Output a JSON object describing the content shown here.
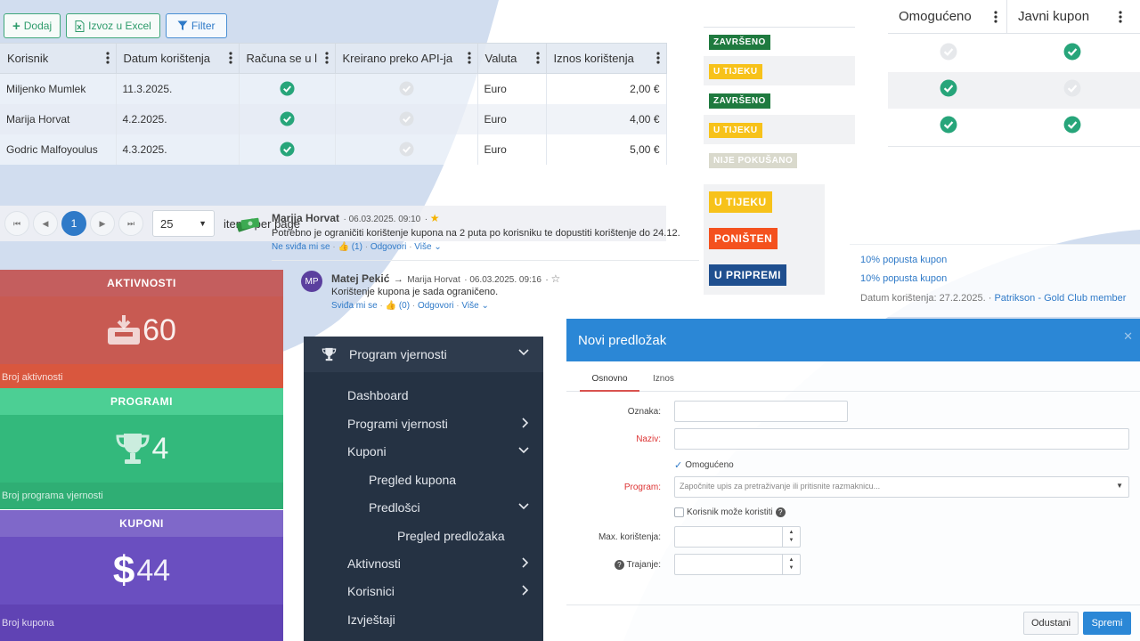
{
  "toolbar": {
    "add_label": "Dodaj",
    "excel_label": "Izvoz u Excel",
    "filter_label": "Filter"
  },
  "grid": {
    "columns": [
      "Korisnik",
      "Datum korištenja",
      "Računa se u l",
      "Kreirano preko API-ja",
      "Valuta",
      "Iznos korištenja"
    ],
    "rows": [
      {
        "user": "Miljenko Mumlek",
        "date": "11.3.2025.",
        "counted": true,
        "api": false,
        "currency": "Euro",
        "amount": "2,00 €"
      },
      {
        "user": "Marija Horvat",
        "date": "4.2.2025.",
        "counted": true,
        "api": false,
        "currency": "Euro",
        "amount": "4,00 €"
      },
      {
        "user": "Godric Malfoyoulus",
        "date": "4.3.2025.",
        "counted": true,
        "api": false,
        "currency": "Euro",
        "amount": "5,00 €"
      }
    ],
    "pager": {
      "current_page": "1",
      "page_size": "25",
      "items_per_page_label": "items per page"
    }
  },
  "statuses": {
    "small": [
      {
        "label": "ZAVRŠENO",
        "bg": "#1f7a3f",
        "fg": "#ffffff"
      },
      {
        "label": "U TIJEKU",
        "bg": "#f7c21a",
        "fg": "#ffffff"
      },
      {
        "label": "ZAVRŠENO",
        "bg": "#1f7a3f",
        "fg": "#ffffff"
      },
      {
        "label": "U TIJEKU",
        "bg": "#f7c21a",
        "fg": "#ffffff"
      },
      {
        "label": "NIJE POKUŠANO",
        "bg": "#d9d9cc",
        "fg": "#ffffff"
      }
    ],
    "large": [
      {
        "label": "U TIJEKU",
        "bg": "#f7c21a",
        "fg": "#ffffff"
      },
      {
        "label": "PONIŠTEN",
        "bg": "#f4511e",
        "fg": "#ffffff"
      },
      {
        "label": "U PRIPREMI",
        "bg": "#1f4f8f",
        "fg": "#ffffff"
      }
    ]
  },
  "right_table": {
    "col_enabled": "Omogućeno",
    "col_public": "Javni kupon",
    "rows": [
      {
        "enabled": false,
        "public": true
      },
      {
        "enabled": true,
        "public": false
      },
      {
        "enabled": true,
        "public": true
      }
    ]
  },
  "comments": [
    {
      "author": "Marija Horvat",
      "date": "06.03.2025. 09:10",
      "starred": true,
      "text": "Potrebno je ograničiti korištenje kupona na 2 puta po korisniku te dopustiti korištenje do 24.12.",
      "dislike": "Ne sviđa mi se",
      "likes": "(1)",
      "reply": "Odgovori",
      "more": "Više"
    },
    {
      "author": "Matej Pekić",
      "initials": "MP",
      "reply_to": "Marija Horvat",
      "date": "06.03.2025. 09:16",
      "starred": false,
      "text": "Korištenje kupona je sada ograničeno.",
      "like": "Sviđa mi se",
      "likes": "(0)",
      "reply": "Odgovori",
      "more": "Više"
    }
  ],
  "tiles": [
    {
      "title": "AKTIVNOSTI",
      "value": "60",
      "footer": "Broj aktivnosti",
      "icon": "inbox-download-icon",
      "head_bg": "#c45e5e",
      "body_bg": "#c85a52",
      "foot_bg": "#d9573e"
    },
    {
      "title": "PROGRAMI",
      "value": "4",
      "footer": "Broj programa vjernosti",
      "icon": "trophy-icon",
      "head_bg": "#4ccf94",
      "body_bg": "#33b97c",
      "foot_bg": "#2fae74"
    },
    {
      "title": "KUPONI",
      "value": "44",
      "footer": "Broj kupona",
      "icon": "dollar-icon",
      "head_bg": "#7f68c9",
      "body_bg": "#6a4fc0",
      "foot_bg": "#6043b4"
    }
  ],
  "sidebar": {
    "title": "Program vjernosti",
    "items": [
      {
        "label": "Dashboard"
      },
      {
        "label": "Programi vjernosti",
        "chevron": "right"
      },
      {
        "label": "Kuponi",
        "chevron": "down"
      },
      {
        "label": "Pregled kupona"
      },
      {
        "label": "Predlošci",
        "chevron": "down"
      },
      {
        "label": "Pregled predložaka"
      },
      {
        "label": "Aktivnosti",
        "chevron": "right"
      },
      {
        "label": "Korisnici",
        "chevron": "right"
      },
      {
        "label": "Izvještaji"
      }
    ]
  },
  "coupon_info": {
    "link1": "10% popusta kupon",
    "link2": "10% popusta kupon",
    "date_label": "Datum korištenja: 27.2.2025.",
    "member_link": "Patrikson - Gold Club member"
  },
  "modal": {
    "title": "Novi predložak",
    "tabs": [
      "Osnovno",
      "Iznos"
    ],
    "label_oznaka": "Oznaka:",
    "label_naziv": "Naziv:",
    "chk_enabled": "Omogućeno",
    "label_program": "Program:",
    "program_placeholder": "Započnite upis za pretraživanje ili pritisnite razmaknicu...",
    "chk_user_can_use": "Korisnik može koristiti",
    "label_max": "Max. korištenja:",
    "label_duration": "Trajanje:",
    "cancel_label": "Odustani",
    "save_label": "Spremi"
  }
}
